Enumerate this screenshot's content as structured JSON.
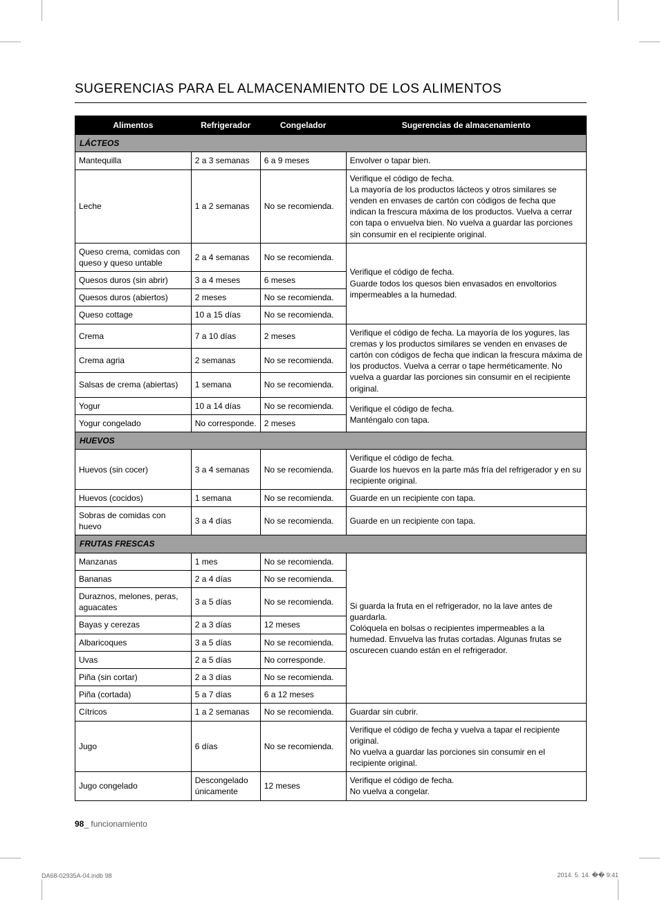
{
  "title": "SUGERENCIAS PARA EL ALMACENAMIENTO DE LOS ALIMENTOS",
  "headers": {
    "food": "Alimentos",
    "refrigerator": "Refrigerador",
    "freezer": "Congelador",
    "suggestions": "Sugerencias de almacenamiento"
  },
  "sections": {
    "dairy": "LÁCTEOS",
    "eggs": "HUEVOS",
    "fruits": "FRUTAS FRESCAS"
  },
  "rows": {
    "mantequilla": {
      "food": "Mantequilla",
      "ref": "2 a 3 semanas",
      "frz": "6 a 9 meses",
      "sug": "Envolver o tapar bien."
    },
    "leche": {
      "food": "Leche",
      "ref": "1 a 2 semanas",
      "frz": "No se recomienda.",
      "sug": "Verifique el código de fecha.\nLa mayoría de los productos lácteos y otros similares se venden en envases de cartón con códigos de fecha que indican la frescura máxima de los productos. Vuelva a cerrar con tapa o envuelva bien. No vuelva a guardar las porciones sin consumir en el recipiente original."
    },
    "quesocrema": {
      "food": "Queso crema, comidas con queso y queso untable",
      "ref": "2 a 4 semanas",
      "frz": "No se recomienda."
    },
    "quesoduro_sin": {
      "food": "Quesos duros (sin abrir)",
      "ref": "3 a 4 meses",
      "frz": "6 meses"
    },
    "quesoduro_ab": {
      "food": "Quesos duros (abiertos)",
      "ref": "2 meses",
      "frz": "No se recomienda."
    },
    "cottage": {
      "food": "Queso cottage",
      "ref": "10 a 15 días",
      "frz": "No se recomienda."
    },
    "queso_sug": "Verifique el código de fecha.\nGuarde todos los quesos bien envasados en envoltorios impermeables a la humedad.",
    "crema": {
      "food": "Crema",
      "ref": "7 a 10 días",
      "frz": "2 meses"
    },
    "cremaagria": {
      "food": "Crema agria",
      "ref": "2 semanas",
      "frz": "No se recomienda."
    },
    "salsascrema": {
      "food": "Salsas de crema (abiertas)",
      "ref": "1 semana",
      "frz": "No se recomienda."
    },
    "crema_sug": "Verifique el código de fecha. La mayoría de los yogures, las cremas y los productos similares se venden en envases de cartón con códigos de fecha que indican la frescura máxima de los productos. Vuelva a cerrar o tape herméticamente. No vuelva a guardar las porciones sin consumir en el recipiente original.",
    "yogur": {
      "food": "Yogur",
      "ref": "10 a 14 días",
      "frz": "No se recomienda."
    },
    "yogurcon": {
      "food": "Yogur congelado",
      "ref": "No corresponde.",
      "frz": "2 meses"
    },
    "yogur_sug": "Verifique el código de fecha.\nManténgalo con tapa.",
    "huevos_sin": {
      "food": "Huevos (sin cocer)",
      "ref": "3 a 4 semanas",
      "frz": "No se recomienda.",
      "sug": "Verifique el código de fecha.\nGuarde los huevos en la parte más fría del refrigerador y en su recipiente original."
    },
    "huevos_coc": {
      "food": "Huevos (cocidos)",
      "ref": "1 semana",
      "frz": "No se recomienda.",
      "sug": "Guarde en un recipiente con tapa."
    },
    "sobras": {
      "food": "Sobras de comidas con huevo",
      "ref": "3 a 4 días",
      "frz": "No se recomienda.",
      "sug": "Guarde en un recipiente con tapa."
    },
    "manzanas": {
      "food": "Manzanas",
      "ref": "1 mes",
      "frz": "No se recomienda."
    },
    "bananas": {
      "food": "Bananas",
      "ref": "2 a 4 días",
      "frz": "No se recomienda."
    },
    "duraznos": {
      "food": "Duraznos, melones, peras, aguacates",
      "ref": "3 a 5 días",
      "frz": "No se recomienda."
    },
    "bayas": {
      "food": "Bayas y cerezas",
      "ref": "2 a 3 días",
      "frz": "12 meses"
    },
    "albaricoques": {
      "food": "Albaricoques",
      "ref": "3 a 5 días",
      "frz": "No se recomienda."
    },
    "uvas": {
      "food": "Uvas",
      "ref": "2 a 5 días",
      "frz": "No corresponde."
    },
    "pina_sin": {
      "food": "Piña (sin cortar)",
      "ref": "2 a 3 días",
      "frz": "No se recomienda."
    },
    "pina_cort": {
      "food": "Piña (cortada)",
      "ref": "5 a 7 días",
      "frz": "6 a 12 meses"
    },
    "frutas_sug": "Si guarda la fruta en el refrigerador, no la lave antes de guardarla.\nColóquela en bolsas o recipientes impermeables a la humedad. Envuelva las frutas cortadas. Algunas frutas se oscurecen cuando están en el refrigerador.",
    "citricos": {
      "food": "Cítricos",
      "ref": "1 a 2 semanas",
      "frz": "No se recomienda.",
      "sug": "Guardar sin cubrir."
    },
    "jugo": {
      "food": "Jugo",
      "ref": "6 días",
      "frz": "No se recomienda.",
      "sug": "Verifique el código de fecha y vuelva a tapar el recipiente original.\nNo vuelva a guardar las porciones sin consumir en el recipiente original."
    },
    "jugocon": {
      "food": "Jugo congelado",
      "ref": "Descongelado únicamente",
      "frz": "12 meses",
      "sug": "Verifique el código de fecha.\nNo vuelva a congelar."
    }
  },
  "footer": {
    "pagenum": "98",
    "section": "_ funcionamiento",
    "file": "DA68-02935A-04.indb   98",
    "date": "2014. 5. 14.   �� 9:41"
  }
}
